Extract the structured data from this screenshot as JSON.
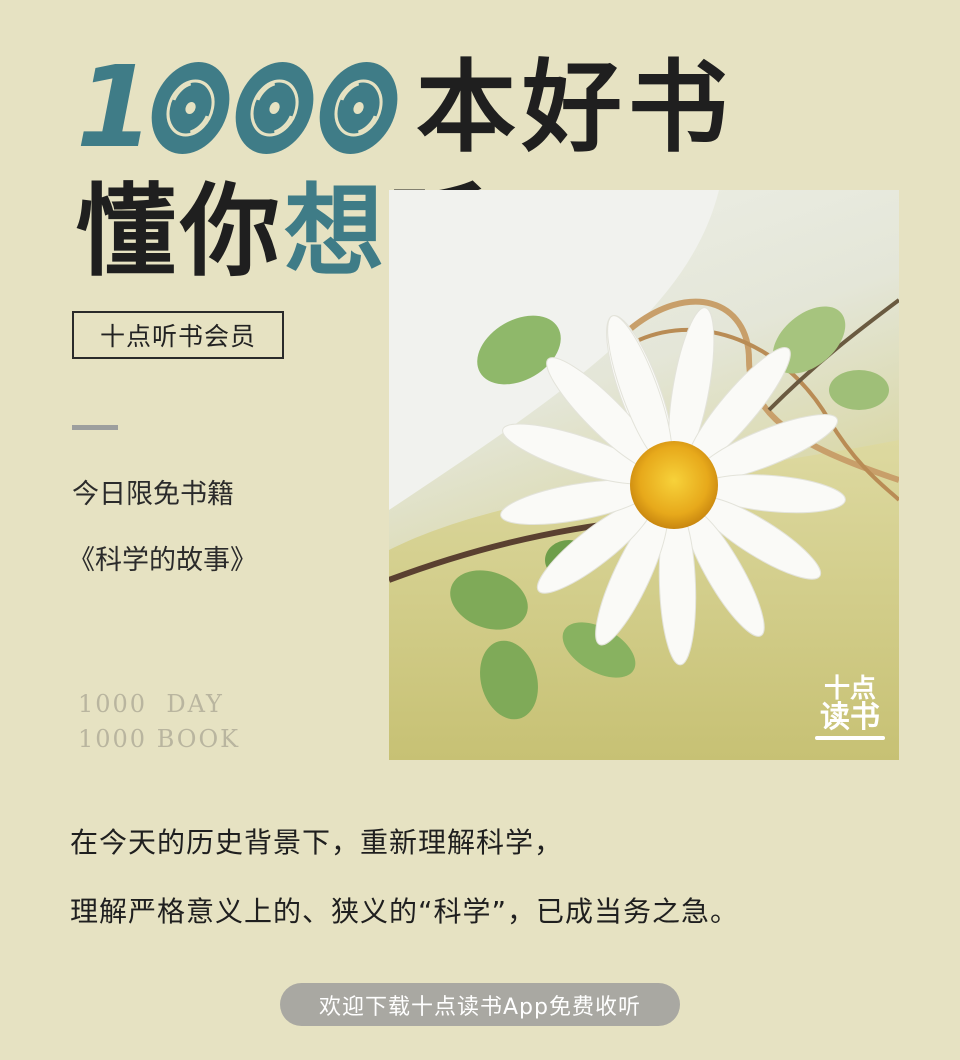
{
  "headline": {
    "digit_one": "1",
    "line1_text": "本好书",
    "line2_pre": "懂你",
    "line2_accent": "想",
    "line2_post": "听"
  },
  "badge": "十点听书会员",
  "free_today": {
    "label": "今日限免书籍",
    "title": "《科学的故事》"
  },
  "english_tagline": [
    "1000  DAY",
    "1000 BOOK"
  ],
  "photo": {
    "logo_line1": "十点",
    "logo_line2": "读书"
  },
  "description": [
    "在今天的历史背景下，重新理解科学，",
    "理解严格意义上的、狭义的“科学”，已成当务之急。"
  ],
  "cta_label": "欢迎下载十点读书App免费收听",
  "colors": {
    "background": "#e6e2c2",
    "accent_teal": "#3f7c87",
    "text_dark": "#1f1f1f",
    "cta_bg": "#a9a8a2"
  },
  "icons": [
    "vinyl-disc-icon",
    "daisy-photo",
    "brand-logo"
  ]
}
